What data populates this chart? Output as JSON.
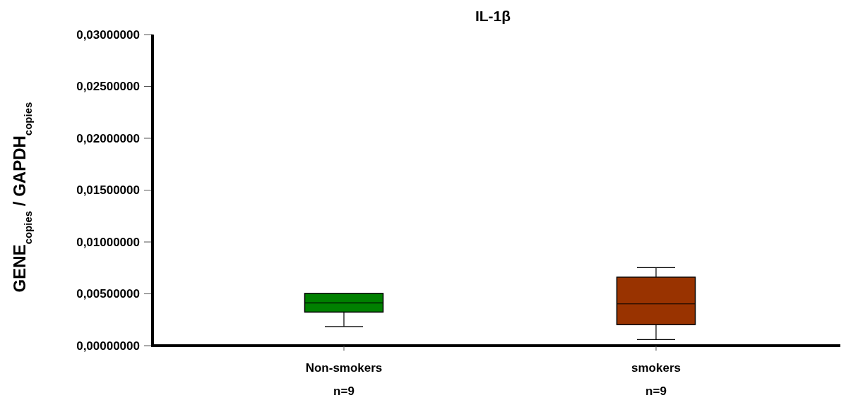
{
  "chart_data": {
    "type": "box",
    "title": "IL-1β",
    "ylabel": "GENE$_{copies}$ / GAPDH$_{copies}$",
    "categories": [
      "Non-smokers\nn=9",
      "smokers\nn=9"
    ],
    "colors": [
      "#008000",
      "#993300"
    ],
    "boxes": [
      {
        "low": 0.00184,
        "q1": 0.00324,
        "median": 0.00413,
        "q3": 0.00504,
        "high": 0.00504
      },
      {
        "low": 0.00059,
        "q1": 0.00203,
        "median": 0.00403,
        "q3": 0.00661,
        "high": 0.00752
      }
    ],
    "ylim": [
      0,
      0.03
    ],
    "yticks": [
      {
        "value": 0,
        "label": "0,00000000"
      },
      {
        "value": 0.005,
        "label": "0,00500000"
      },
      {
        "value": 0.01,
        "label": "0,01000000"
      },
      {
        "value": 0.015,
        "label": "0,01500000"
      },
      {
        "value": 0.02,
        "label": "0,02000000"
      },
      {
        "value": 0.025,
        "label": "0,02500000"
      },
      {
        "value": 0.03,
        "label": "0,03000000"
      }
    ],
    "grid": false
  }
}
